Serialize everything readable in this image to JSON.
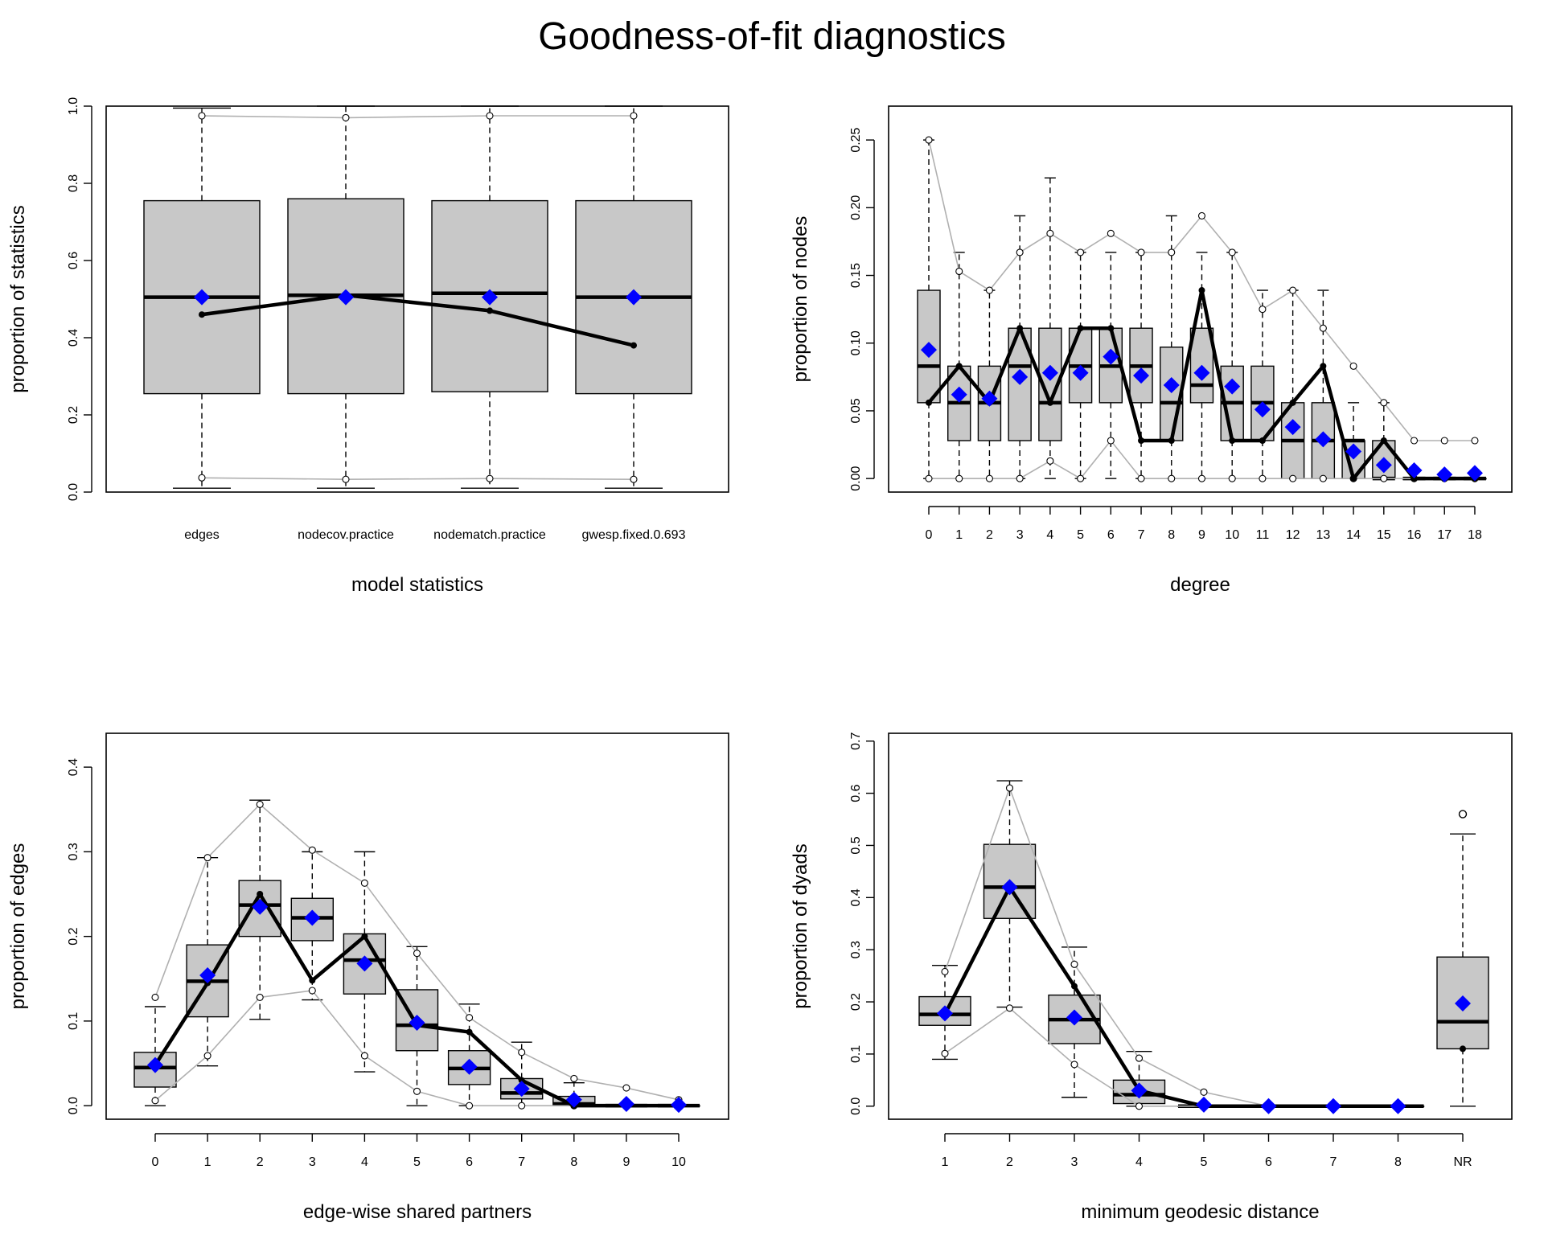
{
  "title": "Goodness-of-fit diagnostics",
  "colors": {
    "box_fill": "#c8c8c8",
    "observed": "#000000",
    "mean_marker": "#0000ff",
    "range_line": "#b0b0b0"
  },
  "chart_data": [
    {
      "type": "boxplot",
      "name": "model statistics",
      "xlabel": "model statistics",
      "ylabel": "proportion of statistics",
      "categories": [
        "edges",
        "nodecov.practice",
        "nodematch.practice",
        "gwesp.fixed.0.693"
      ],
      "ylim": [
        0,
        1
      ],
      "yticks": [
        "0.0",
        "0.2",
        "0.4",
        "0.6",
        "0.8",
        "1.0"
      ],
      "ytick_values": [
        0,
        0.2,
        0.4,
        0.6,
        0.8,
        1.0
      ],
      "box_q1": [
        0.255,
        0.255,
        0.26,
        0.255
      ],
      "box_median": [
        0.505,
        0.51,
        0.515,
        0.505
      ],
      "box_q3": [
        0.755,
        0.76,
        0.755,
        0.755
      ],
      "whisker_low": [
        0.01,
        0.01,
        0.01,
        0.01
      ],
      "whisker_high": [
        0.995,
        1.0,
        1.0,
        1.0
      ],
      "observed": [
        0.46,
        0.51,
        0.47,
        0.38
      ],
      "simulated_mean": [
        0.505,
        0.505,
        0.505,
        0.505
      ],
      "range_low": [
        0.037,
        0.033,
        0.035,
        0.033
      ],
      "range_high": [
        0.975,
        0.97,
        0.975,
        0.975
      ]
    },
    {
      "type": "boxplot",
      "name": "degree",
      "xlabel": "degree",
      "ylabel": "proportion of nodes",
      "categories": [
        "0",
        "1",
        "2",
        "3",
        "4",
        "5",
        "6",
        "7",
        "8",
        "9",
        "10",
        "11",
        "12",
        "13",
        "14",
        "15",
        "16",
        "17",
        "18"
      ],
      "ylim": [
        -0.01,
        0.275
      ],
      "yticks": [
        "0.00",
        "0.05",
        "0.10",
        "0.15",
        "0.20",
        "0.25"
      ],
      "ytick_values": [
        0,
        0.05,
        0.1,
        0.15,
        0.2,
        0.25
      ],
      "box_q1": [
        0.056,
        0.028,
        0.028,
        0.028,
        0.028,
        0.056,
        0.056,
        0.056,
        0.028,
        0.056,
        0.028,
        0.028,
        0.0,
        0.0,
        0.0,
        0.0,
        0.0,
        0.0,
        0.0
      ],
      "box_median": [
        0.083,
        0.056,
        0.056,
        0.083,
        0.056,
        0.083,
        0.083,
        0.083,
        0.056,
        0.069,
        0.056,
        0.056,
        0.028,
        0.028,
        0.028,
        0.0,
        0.0,
        0.0,
        0.0
      ],
      "box_q3": [
        0.139,
        0.083,
        0.083,
        0.111,
        0.111,
        0.111,
        0.111,
        0.111,
        0.097,
        0.111,
        0.083,
        0.083,
        0.056,
        0.056,
        0.028,
        0.028,
        0.0,
        0.0,
        0.0
      ],
      "whisker_low": [
        0,
        0,
        0,
        0,
        0,
        0,
        0,
        0,
        0,
        0,
        0,
        0,
        0,
        0,
        0,
        0,
        0,
        0,
        0
      ],
      "whisker_high": [
        0.25,
        0.167,
        0.139,
        0.194,
        0.222,
        0.167,
        0.167,
        0.167,
        0.194,
        0.167,
        0.167,
        0.139,
        0.139,
        0.139,
        0.056,
        0.056,
        0.0,
        0.0,
        0.0
      ],
      "observed": [
        0.056,
        0.083,
        0.056,
        0.111,
        0.056,
        0.111,
        0.111,
        0.028,
        0.028,
        0.139,
        0.028,
        0.028,
        0.056,
        0.083,
        0.0,
        0.028,
        0.0,
        0.0,
        0.0
      ],
      "simulated_mean": [
        0.095,
        0.062,
        0.059,
        0.075,
        0.078,
        0.078,
        0.09,
        0.076,
        0.069,
        0.078,
        0.068,
        0.051,
        0.038,
        0.029,
        0.02,
        0.01,
        0.006,
        0.003,
        0.004
      ],
      "range_low": [
        0,
        0,
        0,
        0,
        0.013,
        0,
        0.028,
        0,
        0,
        0,
        0,
        0,
        0,
        0,
        0,
        0,
        0,
        0,
        0
      ],
      "range_high": [
        0.25,
        0.153,
        0.139,
        0.167,
        0.181,
        0.167,
        0.181,
        0.167,
        0.167,
        0.194,
        0.167,
        0.125,
        0.139,
        0.111,
        0.083,
        0.056,
        0.028,
        0.028,
        0.028
      ]
    },
    {
      "type": "boxplot",
      "name": "edge-wise shared partners",
      "xlabel": "edge-wise shared partners",
      "ylabel": "proportion of edges",
      "categories": [
        "0",
        "1",
        "2",
        "3",
        "4",
        "5",
        "6",
        "7",
        "8",
        "9",
        "10"
      ],
      "ylim": [
        -0.016,
        0.44
      ],
      "yticks": [
        "0.0",
        "0.1",
        "0.2",
        "0.3",
        "0.4"
      ],
      "ytick_values": [
        0,
        0.1,
        0.2,
        0.3,
        0.4
      ],
      "box_q1": [
        0.022,
        0.105,
        0.2,
        0.195,
        0.132,
        0.065,
        0.025,
        0.008,
        0.0,
        0.0,
        0.0
      ],
      "box_median": [
        0.045,
        0.147,
        0.237,
        0.222,
        0.172,
        0.095,
        0.044,
        0.015,
        0.002,
        0.0,
        0.0
      ],
      "box_q3": [
        0.063,
        0.19,
        0.266,
        0.245,
        0.203,
        0.137,
        0.065,
        0.032,
        0.011,
        0.0,
        0.0
      ],
      "whisker_low": [
        0,
        0.047,
        0.102,
        0.125,
        0.04,
        0,
        0,
        0,
        0,
        0,
        0
      ],
      "whisker_high": [
        0.117,
        0.293,
        0.361,
        0.3,
        0.3,
        0.188,
        0.12,
        0.075,
        0.027,
        0.0,
        0.0
      ],
      "observed": [
        0.048,
        0.145,
        0.25,
        0.148,
        0.2,
        0.095,
        0.087,
        0.03,
        0.0,
        0.0,
        0.0
      ],
      "simulated_mean": [
        0.048,
        0.154,
        0.235,
        0.222,
        0.168,
        0.098,
        0.046,
        0.02,
        0.007,
        0.002,
        0.001
      ],
      "range_low": [
        0.006,
        0.059,
        0.128,
        0.136,
        0.059,
        0.017,
        0.0,
        0.0,
        0.0,
        0.0,
        0.0
      ],
      "range_high": [
        0.128,
        0.293,
        0.356,
        0.302,
        0.263,
        0.18,
        0.104,
        0.063,
        0.032,
        0.021,
        0.007
      ]
    },
    {
      "type": "boxplot",
      "name": "minimum geodesic distance",
      "xlabel": "minimum geodesic distance",
      "ylabel": "proportion of dyads",
      "categories": [
        "1",
        "2",
        "3",
        "4",
        "5",
        "6",
        "7",
        "8",
        "NR"
      ],
      "ylim": [
        -0.025,
        0.715
      ],
      "yticks": [
        "0.0",
        "0.1",
        "0.2",
        "0.3",
        "0.4",
        "0.5",
        "0.6",
        "0.7"
      ],
      "ytick_values": [
        0,
        0.1,
        0.2,
        0.3,
        0.4,
        0.5,
        0.6,
        0.7
      ],
      "box_q1": [
        0.155,
        0.36,
        0.12,
        0.005,
        0.0,
        0.0,
        0.0,
        0.0,
        0.11
      ],
      "box_median": [
        0.176,
        0.42,
        0.166,
        0.022,
        0.0,
        0.0,
        0.0,
        0.0,
        0.162
      ],
      "box_q3": [
        0.21,
        0.502,
        0.213,
        0.05,
        0.0,
        0.0,
        0.0,
        0.0,
        0.286
      ],
      "whisker_low": [
        0.09,
        0.19,
        0.017,
        0.0,
        0.0,
        0.0,
        0.0,
        0.0,
        0.0
      ],
      "whisker_high": [
        0.27,
        0.624,
        0.305,
        0.105,
        0.0,
        0.0,
        0.0,
        0.0,
        0.522
      ],
      "outliers": [
        {
          "category": "NR",
          "value": 0.56
        }
      ],
      "observed": [
        0.176,
        0.42,
        0.23,
        0.03,
        0.0,
        0.0,
        0.0,
        0.0,
        0.11
      ],
      "observed_line_categories": 8,
      "simulated_mean": [
        0.178,
        0.42,
        0.17,
        0.03,
        0.003,
        0.0,
        0.0,
        0.0,
        0.197
      ],
      "range_low": [
        0.101,
        0.188,
        0.08,
        0.0,
        0.0,
        0.0,
        0.0,
        0.0
      ],
      "range_high": [
        0.258,
        0.61,
        0.272,
        0.092,
        0.027,
        0.0,
        0.0,
        0.0
      ]
    }
  ]
}
